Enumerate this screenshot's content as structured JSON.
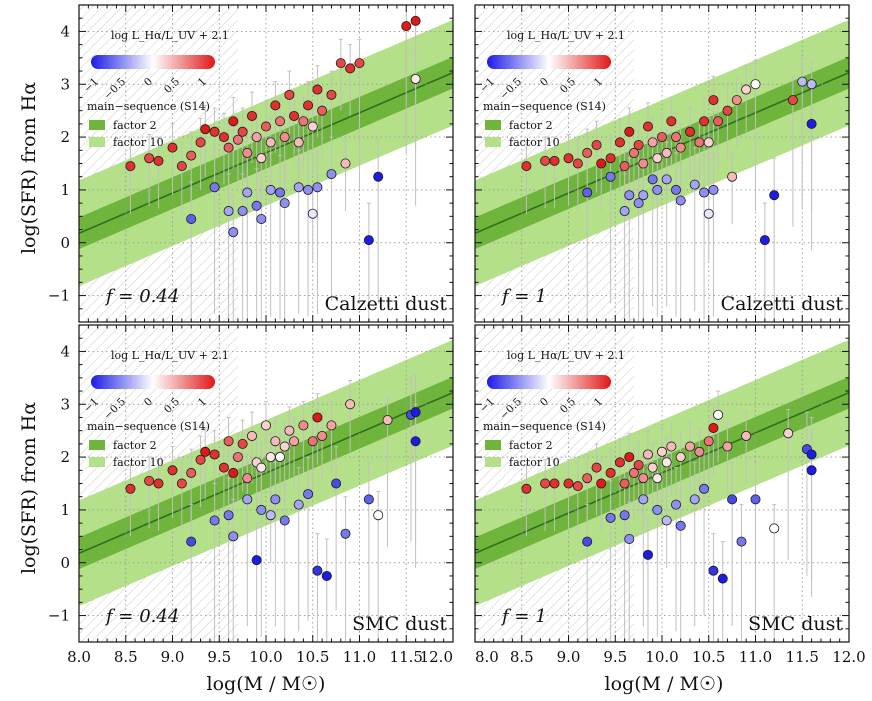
{
  "figure": {
    "ylabel": "log(SFR) from Hα",
    "xlabel": "log(M / M☉)",
    "colorbar_label": "log L_Hα/L_UV + 2.1",
    "colorbar_ticks": [
      "−1",
      "−0.5",
      "0",
      "0.5",
      "1"
    ],
    "legend_title": "main−sequence (S14)",
    "legend_factor2": "factor 2",
    "legend_factor10": "factor 10",
    "colors": {
      "band_factor2": "#6fb53c",
      "band_factor10": "#b5e08a",
      "ms_line": "#2e6e1c",
      "low": "#1c1ce6",
      "mid": "#ffffff",
      "high": "#e01818",
      "errorbar": "#c0c0c0"
    }
  },
  "chart_data": [
    {
      "type": "scatter",
      "panel": "top-left",
      "f_label": "f = 0.44",
      "dust_label": "Calzetti dust",
      "xlim": [
        8.0,
        12.0
      ],
      "ylim": [
        -1.5,
        4.5
      ],
      "xticks": [
        "8.0",
        "8.5",
        "9.0",
        "9.5",
        "10.0",
        "10.5",
        "11.0",
        "11.5",
        "12.0"
      ],
      "yticks": [
        "−1",
        "0",
        "1",
        "2",
        "3",
        "4"
      ],
      "completeness_limit_x": 9.7,
      "main_sequence": {
        "x": [
          8.0,
          12.0
        ],
        "y": [
          0.18,
          3.22
        ],
        "factor2_dex": 0.3,
        "factor10_dex": 1.0
      },
      "points": [
        [
          8.55,
          1.45,
          0.9
        ],
        [
          8.75,
          1.6,
          0.8
        ],
        [
          8.85,
          1.55,
          0.9
        ],
        [
          9.0,
          1.8,
          0.9
        ],
        [
          9.1,
          1.45,
          0.8
        ],
        [
          9.2,
          1.65,
          0.7
        ],
        [
          9.3,
          1.9,
          0.8
        ],
        [
          9.35,
          2.15,
          1.0
        ],
        [
          9.45,
          2.1,
          0.9
        ],
        [
          9.55,
          2.0,
          0.9
        ],
        [
          9.6,
          1.8,
          0.7
        ],
        [
          9.65,
          2.3,
          1.0
        ],
        [
          9.7,
          1.95,
          0.6
        ],
        [
          9.75,
          2.1,
          0.8
        ],
        [
          9.8,
          1.7,
          0.5
        ],
        [
          9.85,
          2.4,
          0.9
        ],
        [
          9.9,
          2.0,
          0.4
        ],
        [
          9.95,
          1.6,
          0.2
        ],
        [
          10.0,
          2.2,
          0.7
        ],
        [
          10.05,
          1.9,
          0.3
        ],
        [
          10.1,
          2.6,
          0.9
        ],
        [
          10.15,
          2.3,
          0.6
        ],
        [
          10.2,
          2.0,
          0.5
        ],
        [
          10.25,
          2.8,
          0.8
        ],
        [
          10.3,
          2.4,
          0.9
        ],
        [
          10.35,
          1.9,
          0.3
        ],
        [
          10.4,
          2.3,
          0.6
        ],
        [
          10.45,
          2.6,
          0.9
        ],
        [
          10.5,
          2.2,
          0.2
        ],
        [
          10.55,
          2.9,
          0.9
        ],
        [
          10.6,
          2.5,
          0.7
        ],
        [
          10.7,
          2.8,
          0.8
        ],
        [
          10.8,
          3.4,
          0.8
        ],
        [
          10.9,
          3.3,
          0.9
        ],
        [
          11.0,
          3.4,
          0.8
        ],
        [
          11.5,
          4.1,
          1.0
        ],
        [
          11.6,
          4.2,
          1.0
        ],
        [
          11.6,
          3.1,
          0.1
        ],
        [
          9.2,
          0.45,
          -0.7
        ],
        [
          9.45,
          1.05,
          -0.6
        ],
        [
          9.6,
          0.6,
          -0.4
        ],
        [
          9.65,
          0.2,
          -0.5
        ],
        [
          9.75,
          0.6,
          -0.5
        ],
        [
          9.8,
          0.95,
          -0.4
        ],
        [
          9.9,
          0.7,
          -0.6
        ],
        [
          9.95,
          0.45,
          -0.5
        ],
        [
          10.05,
          1.0,
          -0.4
        ],
        [
          10.15,
          0.95,
          -0.6
        ],
        [
          10.2,
          0.75,
          -0.5
        ],
        [
          10.35,
          1.05,
          -0.4
        ],
        [
          10.45,
          1.0,
          -0.5
        ],
        [
          10.5,
          0.55,
          -0.1
        ],
        [
          10.55,
          1.05,
          -0.5
        ],
        [
          10.7,
          1.3,
          -0.5
        ],
        [
          10.85,
          1.5,
          0.3
        ],
        [
          11.1,
          0.05,
          -1.0
        ],
        [
          11.2,
          1.25,
          -1.0
        ]
      ]
    },
    {
      "type": "scatter",
      "panel": "top-right",
      "f_label": "f = 1",
      "dust_label": "Calzetti dust",
      "xlim": [
        8.0,
        12.0
      ],
      "ylim": [
        -1.5,
        4.5
      ],
      "xticks": [
        "8.0",
        "8.5",
        "9.0",
        "9.5",
        "10.0",
        "10.5",
        "11.0",
        "11.5",
        "12.0"
      ],
      "yticks": [
        "−1",
        "0",
        "1",
        "2",
        "3",
        "4"
      ],
      "completeness_limit_x": 9.7,
      "main_sequence": {
        "x": [
          8.0,
          12.0
        ],
        "y": [
          0.18,
          3.22
        ],
        "factor2_dex": 0.3,
        "factor10_dex": 1.0
      },
      "points": [
        [
          8.55,
          1.45,
          0.9
        ],
        [
          8.75,
          1.55,
          0.8
        ],
        [
          8.85,
          1.55,
          0.9
        ],
        [
          9.0,
          1.6,
          0.9
        ],
        [
          9.1,
          1.5,
          0.8
        ],
        [
          9.2,
          1.7,
          0.7
        ],
        [
          9.3,
          1.85,
          0.8
        ],
        [
          9.35,
          1.5,
          1.0
        ],
        [
          9.45,
          1.6,
          0.9
        ],
        [
          9.55,
          1.9,
          0.9
        ],
        [
          9.6,
          1.45,
          0.7
        ],
        [
          9.65,
          2.1,
          1.0
        ],
        [
          9.7,
          1.7,
          0.6
        ],
        [
          9.75,
          1.85,
          0.8
        ],
        [
          9.8,
          1.5,
          0.5
        ],
        [
          9.85,
          2.2,
          0.9
        ],
        [
          9.9,
          1.9,
          0.4
        ],
        [
          9.95,
          1.6,
          0.2
        ],
        [
          10.0,
          2.0,
          0.7
        ],
        [
          10.05,
          1.7,
          0.3
        ],
        [
          10.1,
          2.3,
          0.9
        ],
        [
          10.15,
          2.0,
          0.6
        ],
        [
          10.2,
          1.8,
          0.5
        ],
        [
          10.3,
          2.1,
          0.9
        ],
        [
          10.4,
          1.9,
          0.6
        ],
        [
          10.45,
          2.3,
          0.9
        ],
        [
          10.5,
          1.9,
          0.2
        ],
        [
          10.55,
          2.7,
          0.9
        ],
        [
          10.6,
          2.3,
          0.7
        ],
        [
          10.7,
          2.5,
          0.8
        ],
        [
          10.8,
          2.7,
          0.5
        ],
        [
          10.9,
          2.9,
          0.2
        ],
        [
          11.0,
          3.0,
          0.0
        ],
        [
          11.4,
          2.7,
          0.8
        ],
        [
          11.5,
          3.05,
          -0.3
        ],
        [
          11.6,
          3.0,
          -0.3
        ],
        [
          11.6,
          2.25,
          -1.0
        ],
        [
          9.2,
          0.95,
          -0.7
        ],
        [
          9.45,
          1.25,
          -0.6
        ],
        [
          9.6,
          0.6,
          -0.4
        ],
        [
          9.65,
          0.9,
          -0.5
        ],
        [
          9.75,
          0.75,
          -0.5
        ],
        [
          9.8,
          0.9,
          -0.4
        ],
        [
          9.9,
          1.2,
          -0.6
        ],
        [
          9.95,
          1.0,
          -0.5
        ],
        [
          10.05,
          1.2,
          -0.4
        ],
        [
          10.15,
          1.0,
          -0.6
        ],
        [
          10.2,
          0.8,
          -0.5
        ],
        [
          10.35,
          1.1,
          -0.4
        ],
        [
          10.45,
          0.95,
          -0.5
        ],
        [
          10.5,
          0.55,
          -0.1
        ],
        [
          10.55,
          1.0,
          -0.5
        ],
        [
          10.75,
          1.25,
          0.3
        ],
        [
          11.1,
          0.05,
          -1.0
        ],
        [
          11.2,
          0.9,
          -1.0
        ]
      ]
    },
    {
      "type": "scatter",
      "panel": "bottom-left",
      "f_label": "f = 0.44",
      "dust_label": "SMC dust",
      "xlim": [
        8.0,
        12.0
      ],
      "ylim": [
        -1.5,
        4.5
      ],
      "xticks": [
        "8.0",
        "8.5",
        "9.0",
        "9.5",
        "10.0",
        "10.5",
        "11.0",
        "11.5",
        "12.0"
      ],
      "yticks": [
        "−1",
        "0",
        "1",
        "2",
        "3",
        "4"
      ],
      "completeness_limit_x": 9.7,
      "main_sequence": {
        "x": [
          8.0,
          12.0
        ],
        "y": [
          0.18,
          3.22
        ],
        "factor2_dex": 0.3,
        "factor10_dex": 1.0
      },
      "points": [
        [
          8.55,
          1.4,
          0.9
        ],
        [
          8.75,
          1.55,
          0.8
        ],
        [
          8.85,
          1.5,
          0.9
        ],
        [
          9.0,
          1.75,
          0.9
        ],
        [
          9.1,
          1.5,
          0.8
        ],
        [
          9.2,
          1.7,
          0.7
        ],
        [
          9.3,
          1.95,
          0.8
        ],
        [
          9.35,
          2.1,
          1.0
        ],
        [
          9.45,
          2.05,
          0.9
        ],
        [
          9.55,
          1.8,
          0.9
        ],
        [
          9.6,
          2.3,
          0.7
        ],
        [
          9.65,
          1.7,
          1.0
        ],
        [
          9.7,
          2.0,
          0.6
        ],
        [
          9.75,
          2.25,
          0.8
        ],
        [
          9.8,
          1.6,
          0.5
        ],
        [
          9.85,
          2.4,
          0.3
        ],
        [
          9.9,
          1.9,
          0.2
        ],
        [
          9.95,
          1.8,
          0.1
        ],
        [
          10.0,
          2.6,
          0.2
        ],
        [
          10.05,
          2.0,
          0.1
        ],
        [
          10.1,
          2.3,
          0.3
        ],
        [
          10.15,
          2.0,
          0.0
        ],
        [
          10.2,
          2.2,
          0.2
        ],
        [
          10.25,
          2.5,
          0.3
        ],
        [
          10.3,
          2.3,
          0.4
        ],
        [
          10.4,
          2.6,
          0.5
        ],
        [
          10.5,
          2.3,
          0.6
        ],
        [
          10.55,
          2.75,
          1.0
        ],
        [
          10.6,
          2.4,
          0.5
        ],
        [
          10.7,
          2.6,
          0.4
        ],
        [
          10.9,
          3.0,
          0.3
        ],
        [
          11.3,
          2.7,
          0.3
        ],
        [
          11.55,
          2.8,
          -0.8
        ],
        [
          11.6,
          2.85,
          -1.0
        ],
        [
          11.6,
          2.3,
          -1.0
        ],
        [
          9.2,
          0.4,
          -0.8
        ],
        [
          9.45,
          0.8,
          -0.6
        ],
        [
          9.6,
          0.9,
          -0.6
        ],
        [
          9.65,
          0.5,
          -0.5
        ],
        [
          9.8,
          1.2,
          -0.4
        ],
        [
          9.9,
          0.05,
          -1.0
        ],
        [
          9.95,
          1.0,
          -0.5
        ],
        [
          10.05,
          0.9,
          -0.3
        ],
        [
          10.1,
          1.2,
          -0.5
        ],
        [
          10.2,
          0.8,
          -0.6
        ],
        [
          10.35,
          1.1,
          -0.4
        ],
        [
          10.45,
          1.3,
          -0.6
        ],
        [
          10.55,
          -0.15,
          -0.9
        ],
        [
          10.65,
          -0.25,
          -1.0
        ],
        [
          10.75,
          1.5,
          -0.8
        ],
        [
          10.85,
          0.55,
          -0.6
        ],
        [
          11.1,
          1.2,
          -0.7
        ],
        [
          11.2,
          0.9,
          0.0
        ]
      ]
    },
    {
      "type": "scatter",
      "panel": "bottom-right",
      "f_label": "f = 1",
      "dust_label": "SMC dust",
      "xlim": [
        8.0,
        12.0
      ],
      "ylim": [
        -1.5,
        4.5
      ],
      "xticks": [
        "8.0",
        "8.5",
        "9.0",
        "9.5",
        "10.0",
        "10.5",
        "11.0",
        "11.5",
        "12.0"
      ],
      "yticks": [
        "−1",
        "0",
        "1",
        "2",
        "3",
        "4"
      ],
      "completeness_limit_x": 9.7,
      "main_sequence": {
        "x": [
          8.0,
          12.0
        ],
        "y": [
          0.18,
          3.22
        ],
        "factor2_dex": 0.3,
        "factor10_dex": 1.0
      },
      "points": [
        [
          8.55,
          1.4,
          0.9
        ],
        [
          8.75,
          1.5,
          0.8
        ],
        [
          8.85,
          1.5,
          0.9
        ],
        [
          9.0,
          1.5,
          0.9
        ],
        [
          9.1,
          1.45,
          0.8
        ],
        [
          9.2,
          1.6,
          0.7
        ],
        [
          9.3,
          1.8,
          0.8
        ],
        [
          9.35,
          1.5,
          1.0
        ],
        [
          9.45,
          1.7,
          0.9
        ],
        [
          9.55,
          1.9,
          0.9
        ],
        [
          9.6,
          1.5,
          0.7
        ],
        [
          9.65,
          2.0,
          1.0
        ],
        [
          9.7,
          1.7,
          0.6
        ],
        [
          9.75,
          1.85,
          0.8
        ],
        [
          9.8,
          1.6,
          0.5
        ],
        [
          9.85,
          2.05,
          0.3
        ],
        [
          9.9,
          1.8,
          0.2
        ],
        [
          9.95,
          1.6,
          0.1
        ],
        [
          10.0,
          2.1,
          0.2
        ],
        [
          10.05,
          1.9,
          0.1
        ],
        [
          10.1,
          2.2,
          0.3
        ],
        [
          10.2,
          2.0,
          0.2
        ],
        [
          10.3,
          2.2,
          0.4
        ],
        [
          10.4,
          2.1,
          0.5
        ],
        [
          10.5,
          2.3,
          0.6
        ],
        [
          10.55,
          2.55,
          1.0
        ],
        [
          10.6,
          2.8,
          0.0
        ],
        [
          10.7,
          2.2,
          0.4
        ],
        [
          10.9,
          2.4,
          0.3
        ],
        [
          11.35,
          2.45,
          0.2
        ],
        [
          11.55,
          2.15,
          -0.8
        ],
        [
          11.6,
          2.05,
          -1.0
        ],
        [
          11.6,
          1.75,
          -1.0
        ],
        [
          9.2,
          0.4,
          -0.8
        ],
        [
          9.45,
          0.85,
          -0.6
        ],
        [
          9.6,
          0.9,
          -0.6
        ],
        [
          9.65,
          0.45,
          -0.5
        ],
        [
          9.8,
          1.2,
          -0.4
        ],
        [
          9.85,
          0.15,
          -1.0
        ],
        [
          9.95,
          1.0,
          -0.5
        ],
        [
          10.05,
          0.8,
          -0.3
        ],
        [
          10.15,
          1.1,
          -0.5
        ],
        [
          10.2,
          0.7,
          -0.6
        ],
        [
          10.35,
          1.2,
          -0.4
        ],
        [
          10.45,
          1.4,
          -0.6
        ],
        [
          10.55,
          -0.15,
          -0.9
        ],
        [
          10.65,
          -0.3,
          -1.0
        ],
        [
          10.75,
          1.2,
          -0.8
        ],
        [
          10.85,
          0.4,
          -0.6
        ],
        [
          11.0,
          1.2,
          -0.7
        ],
        [
          11.2,
          0.65,
          0.0
        ]
      ]
    }
  ]
}
